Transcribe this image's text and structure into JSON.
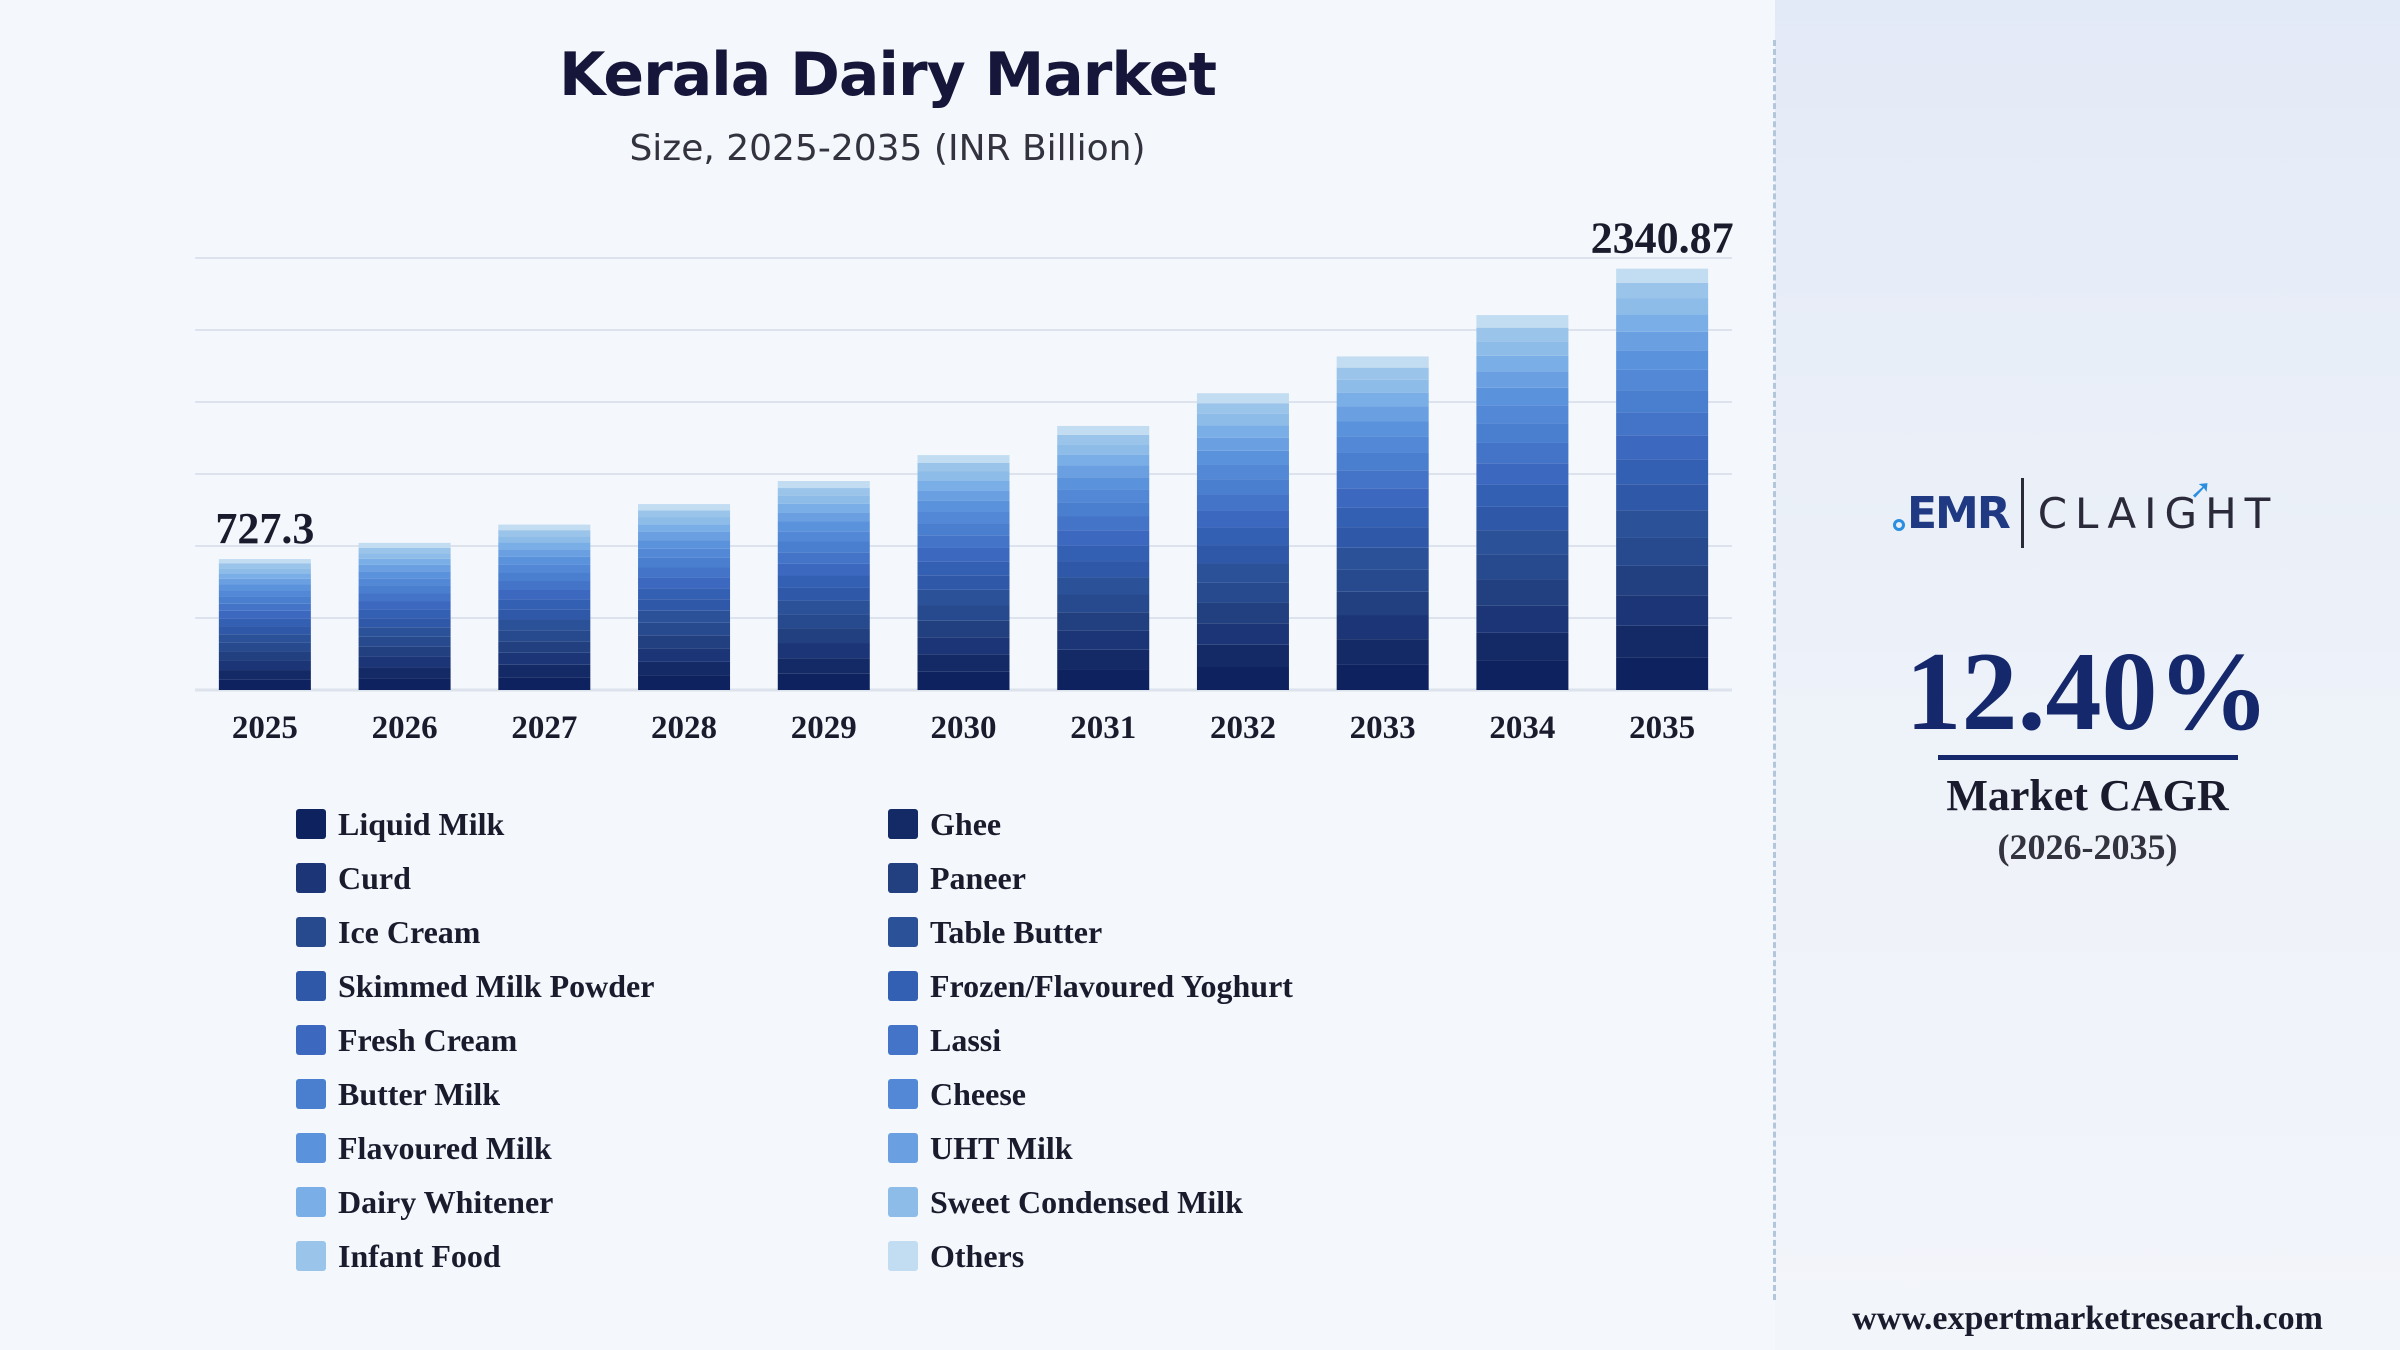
{
  "chart_data": {
    "type": "bar",
    "stacked": true,
    "title": "Kerala Dairy Market",
    "subtitle": "Size, 2025-2035 (INR Billion)",
    "categories": [
      "2025",
      "2026",
      "2027",
      "2028",
      "2029",
      "2030",
      "2031",
      "2032",
      "2033",
      "2034",
      "2035"
    ],
    "totals": [
      727.3,
      817.5,
      918.9,
      1032.9,
      1161.0,
      1305.0,
      1466.8,
      1648.7,
      1853.1,
      2082.9,
      2340.87
    ],
    "data_labels": [
      {
        "category": "2025",
        "text": "727.3"
      },
      {
        "category": "2035",
        "text": "2340.87"
      }
    ],
    "segments": [
      "Liquid Milk",
      "Ghee",
      "Curd",
      "Paneer",
      "Ice Cream",
      "Table Butter",
      "Skimmed Milk Powder",
      "Frozen/Flavoured Yoghurt",
      "Fresh Cream",
      "Lassi",
      "Butter Milk",
      "Cheese",
      "Flavoured Milk",
      "UHT Milk",
      "Dairy Whitener",
      "Sweet Condensed Milk",
      "Infant Food",
      "Others"
    ],
    "ylim": [
      0,
      2600
    ],
    "grid": true,
    "legend_position": "bottom"
  },
  "legend": {
    "left_column": [
      {
        "label": "Liquid Milk",
        "color": "#0f2260"
      },
      {
        "label": "Curd",
        "color": "#1c3576"
      },
      {
        "label": "Ice Cream",
        "color": "#274a8e"
      },
      {
        "label": "Skimmed Milk Powder",
        "color": "#3058a8"
      },
      {
        "label": "Fresh Cream",
        "color": "#3d68c0"
      },
      {
        "label": "Butter Milk",
        "color": "#4a7fd0"
      },
      {
        "label": "Flavoured Milk",
        "color": "#5b92dc"
      },
      {
        "label": "Dairy Whitener",
        "color": "#7aaee6"
      },
      {
        "label": "Infant Food",
        "color": "#9ac4e9"
      }
    ],
    "right_column": [
      {
        "label": "Ghee",
        "color": "#142a66"
      },
      {
        "label": "Paneer",
        "color": "#22407f"
      },
      {
        "label": "Table Butter",
        "color": "#2b5198"
      },
      {
        "label": "Frozen/Flavoured Yoghurt",
        "color": "#3460b4"
      },
      {
        "label": "Lassi",
        "color": "#4474c8"
      },
      {
        "label": "Cheese",
        "color": "#5388d6"
      },
      {
        "label": "UHT Milk",
        "color": "#6aa0e2"
      },
      {
        "label": "Sweet Condensed Milk",
        "color": "#8ebce8"
      },
      {
        "label": "Others",
        "color": "#c2dcf2"
      }
    ]
  },
  "sidebar": {
    "logo": {
      "left": "EMR",
      "right": "CLAIGHT"
    },
    "cagr_value": "12.40%",
    "cagr_label": "Market CAGR",
    "cagr_period": "(2026-2035)",
    "website": "www.expertmarketresearch.com"
  },
  "colors": {
    "title": "#16163a",
    "accent": "#14286b",
    "grid": "#dde3ec",
    "background": "#f4f7fb"
  }
}
